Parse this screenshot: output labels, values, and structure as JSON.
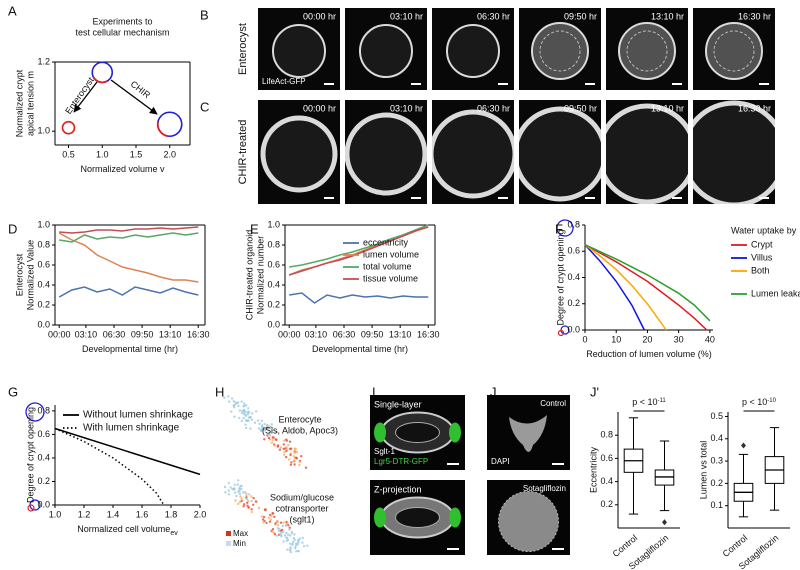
{
  "panels": {
    "B": {
      "label": "B",
      "row_label": "Enterocyst",
      "stain": "LifeAct-GFP",
      "times": [
        "00:00 hr",
        "03:10 hr",
        "06:30 hr",
        "09:50 hr",
        "13:10 hr",
        "16:30 hr"
      ]
    },
    "C": {
      "label": "C",
      "row_label": "CHIR-treated",
      "times": [
        "00:00 hr",
        "03:10 hr",
        "06:30 hr",
        "09:50 hr",
        "13:10 hr",
        "16:30 hr"
      ]
    },
    "H": {
      "label": "H",
      "top_text": [
        "Enterocyte",
        "(Sis, Aldob, Apoc3)"
      ],
      "bottom_text": [
        "Sodium/glucose",
        "cotransporter",
        "(sglt1)"
      ],
      "scale_max": "Max",
      "scale_min": "Min"
    },
    "I": {
      "label": "I",
      "top": "Single-layer",
      "marker": "Sglt-1",
      "reporter": "Lgr5-DTR-GFP",
      "bottom": "Z-projection"
    },
    "J": {
      "label": "J",
      "top": "Control",
      "stain": "DAPI",
      "bottom": "Sotagliflozin"
    }
  },
  "chart_data": [
    {
      "type": "scatter",
      "label": "A",
      "title": [
        "Experiments to",
        "test cellular mechanism"
      ],
      "xlabel": "Normalized volume v",
      "ylabel": [
        "Normalized crypt",
        "apical tension m"
      ],
      "x": [
        1.0,
        0.5,
        2.0
      ],
      "values": [
        1.17,
        1.01,
        1.02
      ],
      "annotations": [
        "Enterocyst",
        "CHIR"
      ],
      "point_color": "#1f1fd6",
      "accent_color": "#e0201f",
      "xlim": [
        0.3,
        2.3
      ],
      "ylim": [
        0.96,
        1.2
      ],
      "xticks": [
        0.5,
        {
          "value": 1,
          "label": "1.0"
        },
        1.5,
        {
          "value": 2,
          "label": "2.0"
        }
      ],
      "yticks": [
        {
          "value": 1,
          "label": "1.0"
        },
        1.2
      ]
    },
    {
      "type": "line",
      "label": "D",
      "xlabel": "Developmental time (hr)",
      "ylabel": [
        "Enterocyst",
        "Normalized Value"
      ],
      "x": [
        0,
        1.5,
        3,
        4.5,
        6,
        7.5,
        9,
        10.5,
        12,
        13.5,
        15,
        16.5
      ],
      "series": [
        {
          "color": "#4c72b0",
          "values": [
            0.28,
            0.35,
            0.38,
            0.33,
            0.36,
            0.3,
            0.38,
            0.35,
            0.32,
            0.37,
            0.33,
            0.3
          ]
        },
        {
          "color": "#dd8452",
          "values": [
            0.92,
            0.85,
            0.8,
            0.7,
            0.64,
            0.58,
            0.55,
            0.52,
            0.48,
            0.45,
            0.45,
            0.43
          ]
        },
        {
          "color": "#55a868",
          "values": [
            0.85,
            0.83,
            0.9,
            0.86,
            0.88,
            0.87,
            0.9,
            0.88,
            0.9,
            0.92,
            0.9,
            0.92
          ]
        },
        {
          "color": "#c44e52",
          "values": [
            0.93,
            0.92,
            0.93,
            0.95,
            0.95,
            0.94,
            0.96,
            0.96,
            0.97,
            0.96,
            0.97,
            0.98
          ]
        }
      ],
      "xlim": [
        -0.5,
        17.3
      ],
      "ylim": [
        0,
        1
      ],
      "xticks": [
        {
          "value": 0,
          "label": "00:00"
        },
        {
          "value": 3.1667,
          "label": "03:10"
        },
        {
          "value": 6.5,
          "label": "06:30"
        },
        {
          "value": 9.8333,
          "label": "09:50"
        },
        {
          "value": 13.1667,
          "label": "13:10"
        },
        {
          "value": 16.5,
          "label": "16:30"
        }
      ],
      "yticks": [
        {
          "value": 0,
          "label": "0.0"
        },
        0.2,
        0.4,
        0.6,
        0.8,
        {
          "value": 1,
          "label": "1.0"
        }
      ]
    },
    {
      "type": "line",
      "label": "E",
      "xlabel": "Developmental time (hr)",
      "ylabel": [
        "CHIR-treated organoid",
        "Normalized number"
      ],
      "legend": "upper right",
      "x": [
        0,
        1.5,
        3,
        4.5,
        6,
        7.5,
        9,
        10.5,
        12,
        13.5,
        15,
        16.5
      ],
      "series": [
        {
          "name": "eccentricity",
          "color": "#4c72b0",
          "values": [
            0.3,
            0.32,
            0.22,
            0.3,
            0.27,
            0.3,
            0.28,
            0.29,
            0.27,
            0.29,
            0.28,
            0.28
          ]
        },
        {
          "name": "lumen volume",
          "color": "#dd8452",
          "values": [
            0.5,
            0.55,
            0.58,
            0.62,
            0.66,
            0.7,
            0.75,
            0.8,
            0.85,
            0.9,
            0.95,
            1.0
          ]
        },
        {
          "name": "total volume",
          "color": "#55a868",
          "values": [
            0.58,
            0.6,
            0.63,
            0.66,
            0.7,
            0.73,
            0.77,
            0.81,
            0.86,
            0.9,
            0.95,
            1.0
          ]
        },
        {
          "name": "tissue volume",
          "color": "#c44e52",
          "values": [
            0.5,
            0.54,
            0.58,
            0.62,
            0.65,
            0.69,
            0.74,
            0.79,
            0.84,
            0.89,
            0.94,
            0.98
          ]
        }
      ],
      "xlim": [
        -0.5,
        17.3
      ],
      "ylim": [
        0,
        1
      ],
      "xticks": [
        {
          "value": 0,
          "label": "00:00"
        },
        {
          "value": 3.1667,
          "label": "03:10"
        },
        {
          "value": 6.5,
          "label": "06:30"
        },
        {
          "value": 9.8333,
          "label": "09:50"
        },
        {
          "value": 13.1667,
          "label": "13:10"
        },
        {
          "value": 16.5,
          "label": "16:30"
        }
      ],
      "yticks": [
        {
          "value": 0,
          "label": "0.0"
        },
        0.2,
        0.4,
        0.6,
        0.8,
        {
          "value": 1,
          "label": "1.0"
        }
      ]
    },
    {
      "type": "line",
      "label": "F",
      "xlabel": "Reduction of lumen volume (%)",
      "ylabel": "Degree of crypt opening",
      "legend": "right",
      "legend_title": "Water uptake by",
      "series": [
        {
          "name": "Crypt",
          "color": "#e41a1c",
          "x": [
            0,
            10,
            20,
            30,
            35,
            39
          ],
          "values": [
            0.65,
            0.52,
            0.37,
            0.19,
            0.09,
            0
          ]
        },
        {
          "name": "Villus",
          "color": "#1010ee",
          "x": [
            0,
            5,
            10,
            15,
            19
          ],
          "values": [
            0.65,
            0.52,
            0.37,
            0.19,
            0
          ]
        },
        {
          "name": "Both",
          "color": "#ffa500",
          "x": [
            0,
            5,
            10,
            15,
            20,
            26
          ],
          "values": [
            0.65,
            0.56,
            0.46,
            0.34,
            0.2,
            0
          ]
        },
        {
          "name": "Lumen leakage",
          "color": "#2ca02c",
          "x": [
            0,
            10,
            20,
            30,
            35,
            40
          ],
          "values": [
            0.65,
            0.54,
            0.42,
            0.28,
            0.19,
            0.07
          ]
        }
      ],
      "xlim": [
        0,
        41
      ],
      "ylim": [
        0,
        0.8
      ],
      "xticks": [
        0,
        10,
        20,
        30,
        40
      ],
      "yticks": [
        {
          "value": 0,
          "label": "0.0"
        },
        0.2,
        0.4,
        0.6,
        0.8
      ]
    },
    {
      "type": "line",
      "label": "G",
      "xlabel": "Normalized cell volume",
      "xlabel_sub": "ev",
      "ylabel": "Degree of crypt opening",
      "legend": "upper left",
      "series": [
        {
          "name": "Without lumen shrinkage",
          "color": "#000000",
          "x": [
            1.0,
            2.0
          ],
          "values": [
            0.65,
            0.26
          ]
        },
        {
          "name": "With lumen shrinkage",
          "color": "#000000",
          "dash": "dotted",
          "x": [
            1.0,
            1.2,
            1.4,
            1.6,
            1.7,
            1.75
          ],
          "values": [
            0.65,
            0.54,
            0.4,
            0.22,
            0.1,
            0
          ]
        }
      ],
      "xlim": [
        1.0,
        2.0
      ],
      "ylim": [
        0,
        0.85
      ],
      "xticks": [
        {
          "value": 1,
          "label": "1.0"
        },
        1.2,
        1.4,
        1.6,
        1.8,
        {
          "value": 2,
          "label": "2.0"
        }
      ],
      "yticks": [
        {
          "value": 0,
          "label": "0.0"
        },
        0.2,
        0.4,
        0.6,
        0.8
      ]
    },
    {
      "type": "box",
      "label": "J'",
      "ylabel": "Eccentricity",
      "categories": [
        "Control",
        "Sotagliflozin"
      ],
      "boxes": [
        {
          "low": 0.12,
          "q1": 0.48,
          "median": 0.58,
          "q3": 0.68,
          "high": 0.95,
          "outliers": []
        },
        {
          "low": 0.15,
          "q1": 0.37,
          "median": 0.44,
          "q3": 0.5,
          "high": 0.75,
          "outliers": [
            0.05
          ]
        }
      ],
      "p_label": {
        "base": "p < 10",
        "exp": "-11"
      },
      "ylim": [
        0,
        1
      ],
      "yticks": [
        0.2,
        0.4,
        0.6,
        0.8
      ]
    },
    {
      "type": "box",
      "ylabel": "Lumen vs total",
      "categories": [
        "Control",
        "Sotagliflozin"
      ],
      "boxes": [
        {
          "low": 0.05,
          "q1": 0.12,
          "median": 0.16,
          "q3": 0.2,
          "high": 0.33,
          "outliers": [
            0.37
          ]
        },
        {
          "low": 0.08,
          "q1": 0.2,
          "median": 0.26,
          "q3": 0.32,
          "high": 0.45,
          "outliers": []
        }
      ],
      "p_label": {
        "base": "p < 10",
        "exp": "-10"
      },
      "ylim": [
        0,
        0.52
      ],
      "yticks": [
        0.1,
        0.2,
        0.3,
        0.4,
        0.5
      ]
    }
  ]
}
